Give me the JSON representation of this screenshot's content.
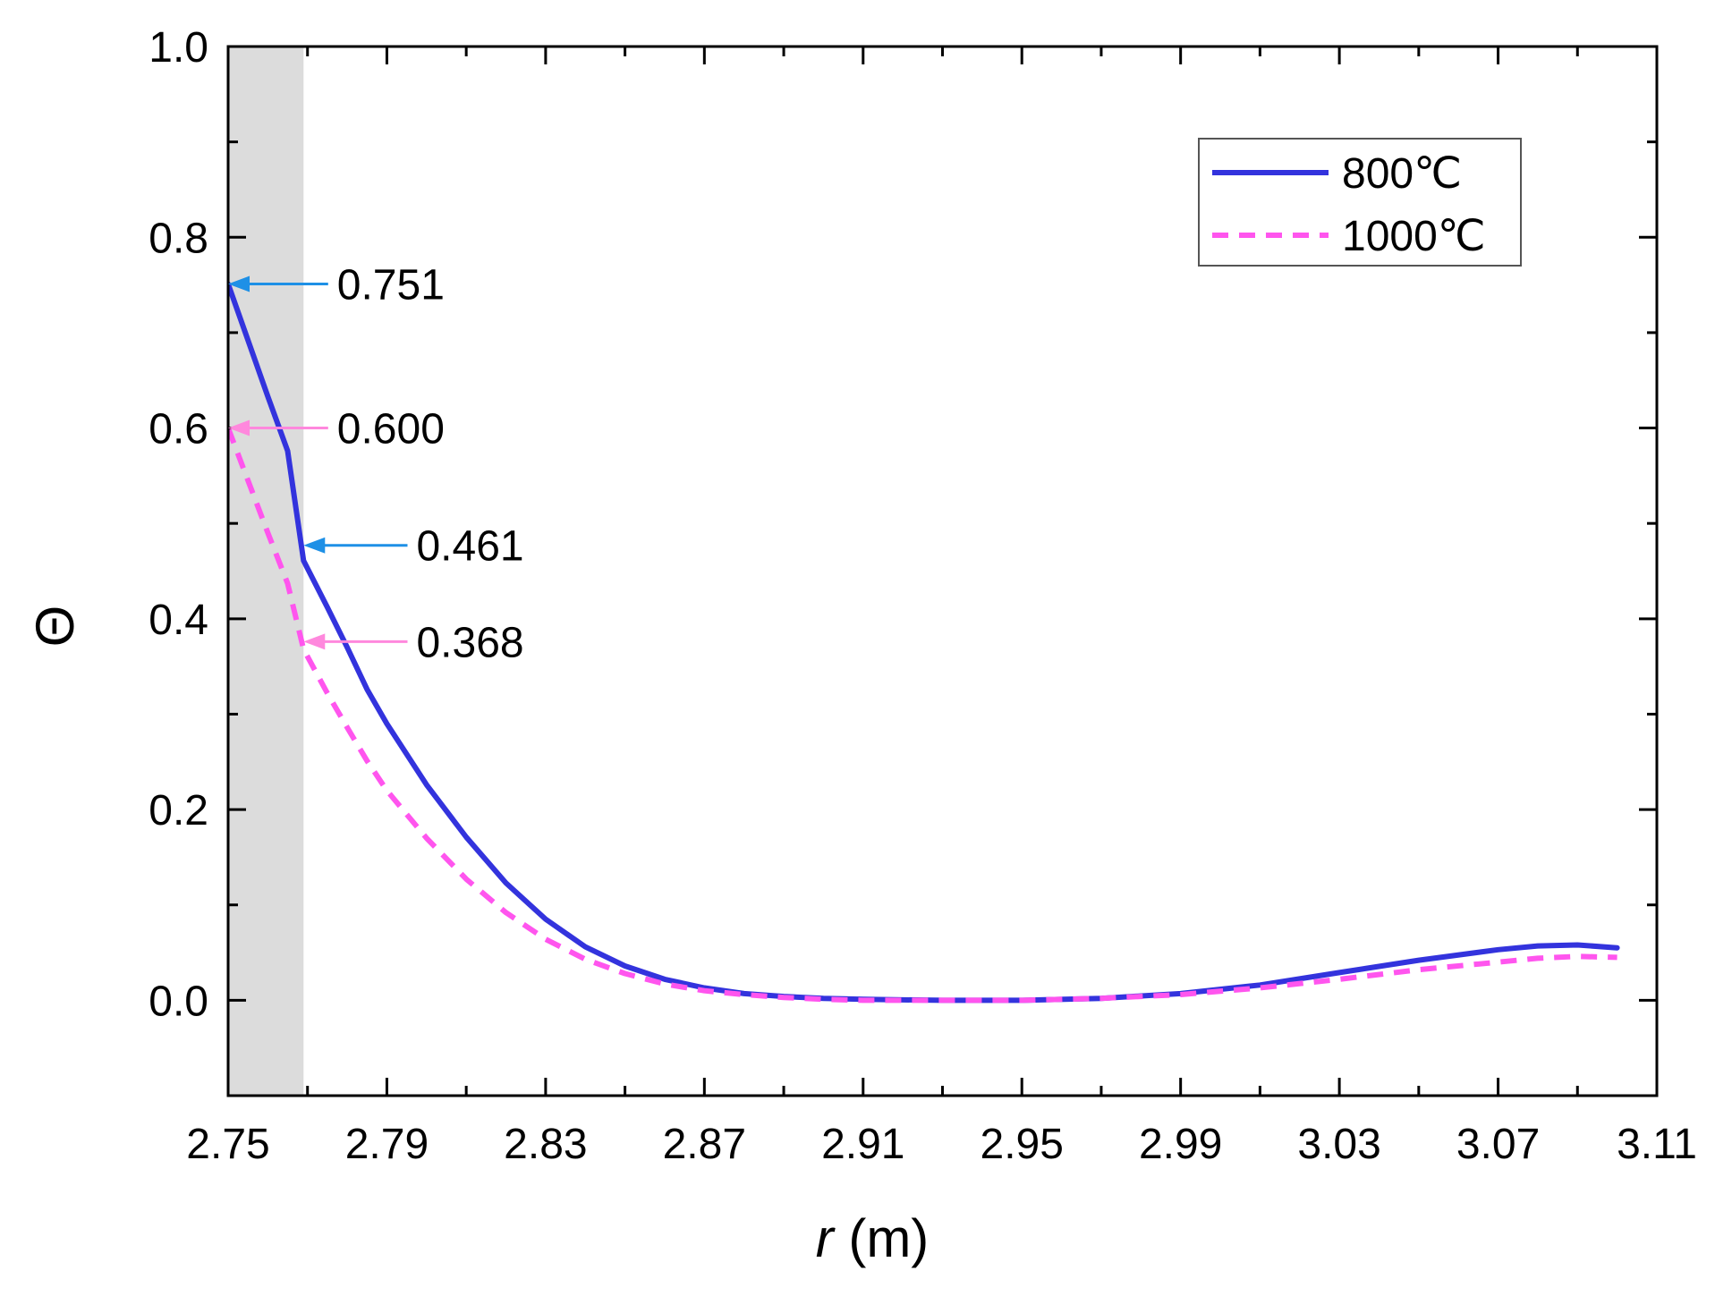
{
  "chart_data": {
    "type": "line",
    "title": "",
    "xlabel_var": "r",
    "xlabel_unit": " (m)",
    "ylabel": "Θ",
    "xlim": [
      2.75,
      3.11
    ],
    "ylim": [
      -0.1,
      1.0
    ],
    "x_ticks": [
      2.75,
      2.79,
      2.83,
      2.87,
      2.91,
      2.95,
      2.99,
      3.03,
      3.07,
      3.11
    ],
    "x_tick_labels": [
      "2.75",
      "2.79",
      "2.83",
      "2.87",
      "2.91",
      "2.95",
      "2.99",
      "3.03",
      "3.07",
      "3.11"
    ],
    "y_ticks": [
      0.0,
      0.2,
      0.4,
      0.6,
      0.8,
      1.0
    ],
    "y_tick_labels": [
      "0.0",
      "0.2",
      "0.4",
      "0.6",
      "0.8",
      "1.0"
    ],
    "grid": false,
    "legend_position": "top-right",
    "shaded_region": {
      "x_start": 2.75,
      "x_end": 2.769,
      "color": "#dcdcdc"
    },
    "series": [
      {
        "name": "800℃",
        "color": "#3333dd",
        "style": "solid",
        "x": [
          2.75,
          2.755,
          2.76,
          2.765,
          2.769,
          2.775,
          2.78,
          2.785,
          2.79,
          2.8,
          2.81,
          2.82,
          2.83,
          2.84,
          2.85,
          2.86,
          2.87,
          2.88,
          2.89,
          2.9,
          2.91,
          2.93,
          2.95,
          2.97,
          2.99,
          3.01,
          3.03,
          3.05,
          3.07,
          3.08,
          3.09,
          3.1
        ],
        "y": [
          0.751,
          0.692,
          0.633,
          0.576,
          0.461,
          0.412,
          0.37,
          0.326,
          0.29,
          0.226,
          0.171,
          0.123,
          0.085,
          0.056,
          0.036,
          0.022,
          0.013,
          0.007,
          0.004,
          0.002,
          0.001,
          0.0,
          0.0,
          0.002,
          0.007,
          0.016,
          0.029,
          0.042,
          0.053,
          0.057,
          0.058,
          0.055
        ]
      },
      {
        "name": "1000℃",
        "color": "#ff55ee",
        "style": "dashed",
        "x": [
          2.75,
          2.755,
          2.76,
          2.765,
          2.769,
          2.775,
          2.78,
          2.785,
          2.79,
          2.8,
          2.81,
          2.82,
          2.83,
          2.84,
          2.85,
          2.86,
          2.87,
          2.88,
          2.89,
          2.9,
          2.91,
          2.93,
          2.95,
          2.97,
          2.99,
          3.01,
          3.03,
          3.05,
          3.07,
          3.08,
          3.09,
          3.1
        ],
        "y": [
          0.6,
          0.545,
          0.49,
          0.437,
          0.368,
          0.322,
          0.286,
          0.251,
          0.22,
          0.17,
          0.127,
          0.092,
          0.064,
          0.043,
          0.028,
          0.017,
          0.01,
          0.006,
          0.003,
          0.001,
          0.0,
          0.0,
          0.0,
          0.002,
          0.006,
          0.013,
          0.022,
          0.032,
          0.04,
          0.044,
          0.046,
          0.045
        ]
      }
    ],
    "annotations": [
      {
        "label": "0.751",
        "x": 2.75,
        "y": 0.751,
        "color": "#1e90e6",
        "text_x": 2.777
      },
      {
        "label": "0.600",
        "x": 2.75,
        "y": 0.6,
        "color": "#ff88dd",
        "text_x": 2.777
      },
      {
        "label": "0.461",
        "x": 2.769,
        "y": 0.477,
        "color": "#1e90e6",
        "text_x": 2.797
      },
      {
        "label": "0.368",
        "x": 2.769,
        "y": 0.376,
        "color": "#ff88dd",
        "text_x": 2.797
      }
    ]
  }
}
